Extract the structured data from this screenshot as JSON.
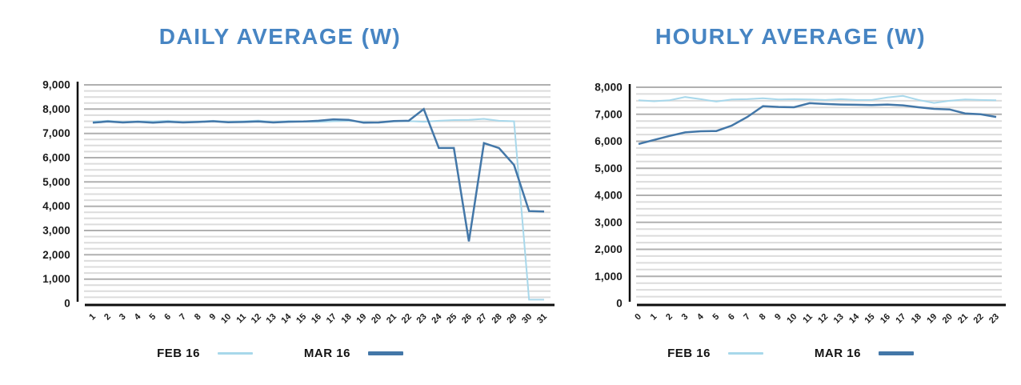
{
  "colors": {
    "title": "#4785C3",
    "feb_line": "#A8D8EB",
    "mar_line": "#4377A8",
    "grid_minor": "#DCDCDC",
    "grid_major": "#B0B0B0",
    "axis": "#0D0D0D",
    "tick_text": "#1A1A1A",
    "legend_text": "#121212"
  },
  "chart_data": [
    {
      "type": "line",
      "title": "DAILY AVERAGE (W)",
      "xlabel": "",
      "ylabel": "",
      "ylim": [
        0,
        9000
      ],
      "y_major_step": 1000,
      "y_minor_step": 250,
      "grid": true,
      "legend_position": "bottom",
      "x_tick_labels": [
        "1",
        "2",
        "3",
        "4",
        "5",
        "6",
        "7",
        "8",
        "9",
        "10",
        "11",
        "12",
        "13",
        "14",
        "15",
        "16",
        "17",
        "18",
        "19",
        "20",
        "21",
        "22",
        "23",
        "24",
        "25",
        "26",
        "27",
        "28",
        "29",
        "30",
        "31"
      ],
      "y_tick_labels": [
        "0",
        "1,000",
        "2,000",
        "3,000",
        "4,000",
        "5,000",
        "6,000",
        "7,000",
        "8,000",
        "9,000"
      ],
      "series": [
        {
          "name": "FEB 16",
          "color": "#A8D8EB",
          "width": 2,
          "values": [
            7480,
            7520,
            7470,
            7500,
            7490,
            7520,
            7470,
            7490,
            7520,
            7480,
            7500,
            7530,
            7470,
            7510,
            7490,
            7470,
            7500,
            7520,
            7470,
            7440,
            7490,
            7510,
            7480,
            7520,
            7550,
            7560,
            7600,
            7520,
            7500,
            150,
            150
          ]
        },
        {
          "name": "MAR 16",
          "color": "#4377A8",
          "width": 2.5,
          "values": [
            7440,
            7490,
            7450,
            7480,
            7440,
            7480,
            7450,
            7470,
            7500,
            7460,
            7470,
            7490,
            7450,
            7480,
            7490,
            7520,
            7580,
            7560,
            7440,
            7450,
            7510,
            7520,
            8000,
            6400,
            6400,
            2550,
            6600,
            6400,
            5700,
            3800,
            3780
          ]
        }
      ]
    },
    {
      "type": "line",
      "title": "HOURLY AVERAGE (W)",
      "xlabel": "",
      "ylabel": "",
      "ylim": [
        0,
        8000
      ],
      "y_major_step": 1000,
      "y_minor_step": 250,
      "grid": true,
      "legend_position": "bottom",
      "x_tick_labels": [
        "0",
        "1",
        "2",
        "3",
        "4",
        "5",
        "6",
        "7",
        "8",
        "9",
        "10",
        "11",
        "12",
        "13",
        "14",
        "15",
        "16",
        "17",
        "18",
        "19",
        "20",
        "21",
        "22",
        "23"
      ],
      "y_tick_labels": [
        "0",
        "1,000",
        "2,000",
        "3,000",
        "4,000",
        "5,000",
        "6,000",
        "7,000",
        "8,000"
      ],
      "series": [
        {
          "name": "FEB 16",
          "color": "#A8D8EB",
          "width": 2,
          "values": [
            7520,
            7480,
            7520,
            7640,
            7560,
            7470,
            7550,
            7560,
            7590,
            7550,
            7560,
            7550,
            7530,
            7560,
            7530,
            7530,
            7620,
            7680,
            7530,
            7420,
            7500,
            7550,
            7530,
            7520
          ]
        },
        {
          "name": "MAR 16",
          "color": "#4377A8",
          "width": 2.5,
          "values": [
            5900,
            6050,
            6200,
            6330,
            6370,
            6380,
            6580,
            6900,
            7300,
            7270,
            7260,
            7410,
            7380,
            7360,
            7350,
            7340,
            7360,
            7330,
            7260,
            7200,
            7180,
            7030,
            7000,
            6900
          ]
        }
      ]
    }
  ]
}
